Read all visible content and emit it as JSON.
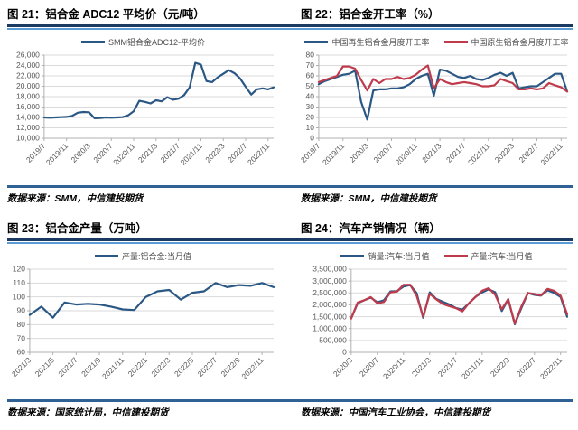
{
  "colors": {
    "line_blue": "#2a5784",
    "line_red": "#bf3b4c",
    "rule_dark_navy": "#1b3a61",
    "rule_light_blue": "#5b9bd5",
    "footer_rule_blue": "#2f6195",
    "grid": "#dadada",
    "axis": "#b0b0b0",
    "tick_text": "#595959"
  },
  "chart_data": [
    {
      "type": "line",
      "title": "图 21：铝合金 ADC12 平均价（元/吨）",
      "source": "数据来源：SMM，中信建投期货",
      "xlabel": "",
      "ylabel": "",
      "grid": true,
      "legend_position": "top",
      "ylim": [
        10000,
        26000
      ],
      "ystep": 2000,
      "x_tick_labels": [
        "2019/7",
        "2019/11",
        "2020/3",
        "2020/7",
        "2020/11",
        "2021/3",
        "2021/7",
        "2021/11",
        "2022/3",
        "2022/7",
        "2022/11"
      ],
      "x_tick_step": 4,
      "series": [
        {
          "name": "SMM铝合金ADC12-平均价",
          "color": "#2a5784",
          "values": [
            14000,
            13950,
            14000,
            14050,
            14100,
            14300,
            14900,
            15050,
            15000,
            13850,
            13900,
            14000,
            13950,
            14000,
            14050,
            14400,
            15200,
            17200,
            17000,
            16700,
            17300,
            17100,
            17900,
            17400,
            17600,
            18300,
            19800,
            24500,
            24200,
            21000,
            20800,
            21700,
            22400,
            23100,
            22500,
            21500,
            19900,
            18400,
            19400,
            19600,
            19400,
            19800
          ]
        }
      ]
    },
    {
      "type": "line",
      "title": "图 22：铝合金开工率（%）",
      "source": "数据来源：SMM，中信建投期货",
      "xlabel": "",
      "ylabel": "",
      "grid": true,
      "legend_position": "top",
      "ylim": [
        0,
        80
      ],
      "ystep": 10,
      "x_tick_labels": [
        "2019/7",
        "2019/11",
        "2020/3",
        "2020/7",
        "2020/11",
        "2021/3",
        "2021/7",
        "2021/11",
        "2022/3",
        "2022/7",
        "2022/11"
      ],
      "x_tick_step": 4,
      "series": [
        {
          "name": "中国再生铝合金月度开工率",
          "color": "#2a5784",
          "values": [
            52,
            55,
            57,
            59,
            61,
            62,
            65,
            35,
            18,
            46,
            47,
            47,
            48,
            48,
            49,
            52,
            57,
            60,
            62,
            41,
            66,
            65,
            62,
            59,
            58,
            60,
            57,
            56,
            58,
            61,
            63,
            60,
            63,
            48,
            49,
            50,
            50,
            54,
            58,
            62,
            62,
            45
          ]
        },
        {
          "name": "中国原生铝合金月度开工率",
          "color": "#bf3b4c",
          "values": [
            54,
            56,
            58,
            60,
            69,
            69,
            67,
            56,
            46,
            57,
            53,
            57,
            57,
            59,
            57,
            58,
            61,
            66,
            70,
            48,
            57,
            54,
            52,
            53,
            54,
            53,
            52,
            50,
            50,
            51,
            57,
            55,
            53,
            47,
            47,
            48,
            47,
            48,
            53,
            51,
            49,
            45
          ]
        }
      ]
    },
    {
      "type": "line",
      "title": "图 23：铝合金产量（万吨）",
      "source": "数据来源：国家统计局，中信建投期货",
      "xlabel": "",
      "ylabel": "",
      "grid": true,
      "legend_position": "top",
      "ylim": [
        60,
        120
      ],
      "ystep": 10,
      "x_tick_labels": [
        "2021/3",
        "2021/5",
        "2021/7",
        "2021/9",
        "2021/11",
        "2022/1",
        "2022/3",
        "2022/5",
        "2022/7",
        "2022/9",
        "2022/11"
      ],
      "x_tick_step": 2,
      "series": [
        {
          "name": "产量:铝合金:当月值",
          "color": "#2a5784",
          "values": [
            87,
            93,
            85,
            96,
            94.5,
            95,
            94.5,
            93,
            91,
            90.5,
            100,
            104,
            105,
            98,
            103,
            104,
            110,
            107,
            108.5,
            108,
            110,
            107
          ]
        }
      ]
    },
    {
      "type": "line",
      "title": "图 24：汽车产销情况（辆）",
      "source": "数据来源：中国汽车工业协会，中信建投期货",
      "xlabel": "",
      "ylabel": "",
      "grid": true,
      "legend_position": "top",
      "ylim": [
        0,
        3500000
      ],
      "ystep": 500000,
      "x_tick_labels": [
        "2020/3",
        "2020/7",
        "2020/11",
        "2021/3",
        "2021/7",
        "2021/11",
        "2022/3",
        "2022/7",
        "2022/11"
      ],
      "x_tick_step": 4,
      "series": [
        {
          "name": "销量:汽车:当月值",
          "color": "#2a5784",
          "values": [
            1430000,
            2070000,
            2190000,
            2300000,
            2110000,
            2190000,
            2565000,
            2575000,
            2770000,
            2830000,
            2500000,
            1455000,
            2525000,
            2250000,
            2130000,
            2015000,
            1865000,
            1800000,
            2065000,
            2335000,
            2520000,
            2650000,
            2530000,
            1740000,
            2235000,
            1180000,
            1860000,
            2500000,
            2420000,
            2385000,
            2610000,
            2505000,
            2330000,
            1500000
          ]
        },
        {
          "name": "产量:汽车:当月值",
          "color": "#bf3b4c",
          "values": [
            1420000,
            2100000,
            2190000,
            2325000,
            2065000,
            2120000,
            2525000,
            2555000,
            2840000,
            2845000,
            2385000,
            1500000,
            2460000,
            2235000,
            2040000,
            1945000,
            1860000,
            1725000,
            2075000,
            2330000,
            2590000,
            2700000,
            2420000,
            1815000,
            2240000,
            1205000,
            1925000,
            2495000,
            2455000,
            2400000,
            2670000,
            2590000,
            2380000,
            1600000
          ]
        }
      ]
    }
  ]
}
